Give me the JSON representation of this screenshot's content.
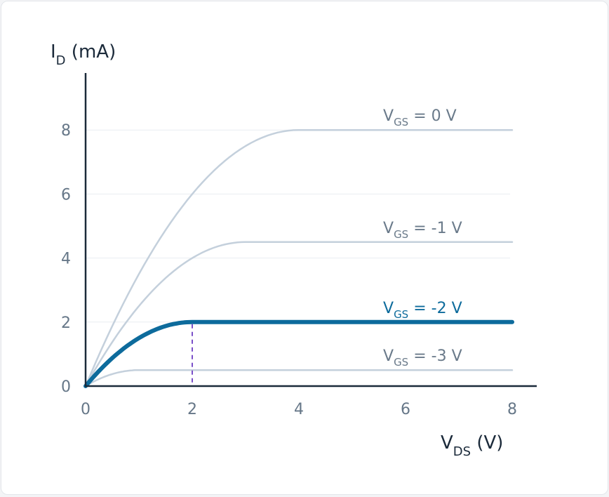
{
  "chart_data": {
    "type": "line",
    "title": "",
    "xlabel": {
      "main": "V",
      "sub": "DS",
      "unit": " (V)"
    },
    "ylabel": {
      "main": "I",
      "sub": "D",
      "unit": " (mA)"
    },
    "xlim": [
      0,
      8
    ],
    "ylim": [
      0,
      8
    ],
    "x_ticks": [
      0,
      2,
      4,
      6,
      8
    ],
    "y_ticks": [
      0,
      2,
      4,
      6,
      8
    ],
    "grid": "horizontal",
    "series": [
      {
        "name": "V_GS = 0 V",
        "label_main": "V",
        "label_sub": "GS",
        "label_rest": " = 0 V",
        "vgs": 0,
        "saturation_vds": 4,
        "saturation_id": 8,
        "highlight": false
      },
      {
        "name": "V_GS = -1 V",
        "label_main": "V",
        "label_sub": "GS",
        "label_rest": " = -1 V",
        "vgs": -1,
        "saturation_vds": 3,
        "saturation_id": 4.5,
        "highlight": false
      },
      {
        "name": "V_GS = -2 V",
        "label_main": "V",
        "label_sub": "GS",
        "label_rest": " = -2 V",
        "vgs": -2,
        "saturation_vds": 2,
        "saturation_id": 2,
        "highlight": true
      },
      {
        "name": "V_GS = -3 V",
        "label_main": "V",
        "label_sub": "GS",
        "label_rest": " = -3 V",
        "vgs": -3,
        "saturation_vds": 1,
        "saturation_id": 0.5,
        "highlight": false
      }
    ],
    "annotation": {
      "type": "dashed-vertical",
      "x": 2,
      "y": 2
    },
    "colors": {
      "curve": "#c4d0dc",
      "highlight": "#0d6b9c",
      "axis": "#1b2a3a",
      "grid": "#e9edf1",
      "dash": "#7a4fc9"
    }
  }
}
